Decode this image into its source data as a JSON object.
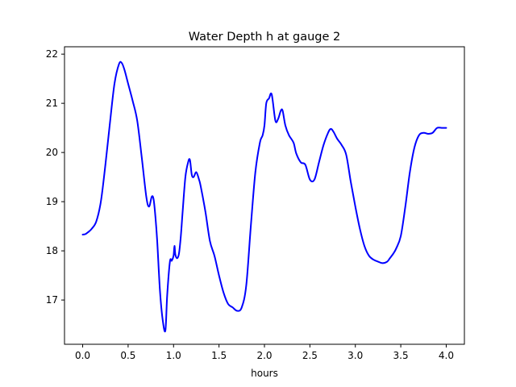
{
  "chart_data": {
    "type": "line",
    "title": "Water Depth h at gauge 2",
    "xlabel": "hours",
    "ylabel": "",
    "xlim": [
      -0.2,
      4.2
    ],
    "ylim": [
      16.1,
      22.15
    ],
    "xticks": [
      0.0,
      0.5,
      1.0,
      1.5,
      2.0,
      2.5,
      3.0,
      3.5,
      4.0
    ],
    "xtick_labels": [
      "0.0",
      "0.5",
      "1.0",
      "1.5",
      "2.0",
      "2.5",
      "3.0",
      "3.5",
      "4.0"
    ],
    "yticks": [
      17,
      18,
      19,
      20,
      21,
      22
    ],
    "ytick_labels": [
      "17",
      "18",
      "19",
      "20",
      "21",
      "22"
    ],
    "grid": false,
    "series": [
      {
        "color": "#0000ff",
        "x": [
          0.0,
          0.03,
          0.06,
          0.1,
          0.15,
          0.2,
          0.25,
          0.3,
          0.35,
          0.4,
          0.43,
          0.46,
          0.5,
          0.55,
          0.6,
          0.65,
          0.7,
          0.73,
          0.76,
          0.78,
          0.8,
          0.82,
          0.85,
          0.88,
          0.91,
          0.93,
          0.96,
          0.98,
          1.0,
          1.01,
          1.02,
          1.04,
          1.06,
          1.08,
          1.1,
          1.13,
          1.16,
          1.18,
          1.2,
          1.22,
          1.25,
          1.28,
          1.3,
          1.35,
          1.4,
          1.45,
          1.5,
          1.55,
          1.6,
          1.65,
          1.7,
          1.75,
          1.8,
          1.85,
          1.9,
          1.95,
          1.98,
          2.0,
          2.02,
          2.05,
          2.08,
          2.12,
          2.15,
          2.18,
          2.2,
          2.23,
          2.27,
          2.32,
          2.35,
          2.4,
          2.45,
          2.5,
          2.55,
          2.6,
          2.65,
          2.7,
          2.73,
          2.76,
          2.8,
          2.85,
          2.9,
          2.95,
          3.0,
          3.05,
          3.1,
          3.15,
          3.2,
          3.25,
          3.3,
          3.35,
          3.38,
          3.42,
          3.45,
          3.5,
          3.55,
          3.6,
          3.65,
          3.7,
          3.75,
          3.8,
          3.85,
          3.9,
          3.95,
          4.0
        ],
        "values": [
          18.33,
          18.34,
          18.38,
          18.45,
          18.6,
          19.0,
          19.75,
          20.6,
          21.4,
          21.8,
          21.82,
          21.68,
          21.4,
          21.05,
          20.65,
          19.9,
          19.1,
          18.9,
          19.1,
          19.05,
          18.7,
          18.2,
          17.2,
          16.6,
          16.38,
          17.1,
          17.78,
          17.8,
          17.9,
          18.1,
          17.92,
          17.85,
          17.95,
          18.3,
          18.8,
          19.5,
          19.8,
          19.85,
          19.55,
          19.5,
          19.6,
          19.45,
          19.3,
          18.8,
          18.2,
          17.9,
          17.5,
          17.15,
          16.92,
          16.85,
          16.78,
          16.85,
          17.3,
          18.5,
          19.6,
          20.2,
          20.35,
          20.55,
          21.0,
          21.1,
          21.18,
          20.65,
          20.68,
          20.85,
          20.85,
          20.55,
          20.35,
          20.2,
          19.98,
          19.8,
          19.75,
          19.45,
          19.45,
          19.8,
          20.15,
          20.4,
          20.48,
          20.42,
          20.28,
          20.15,
          19.95,
          19.4,
          18.9,
          18.45,
          18.1,
          17.9,
          17.82,
          17.78,
          17.75,
          17.78,
          17.85,
          17.95,
          18.05,
          18.3,
          18.9,
          19.6,
          20.1,
          20.35,
          20.4,
          20.38,
          20.4,
          20.5,
          20.5,
          20.5
        ]
      }
    ]
  }
}
